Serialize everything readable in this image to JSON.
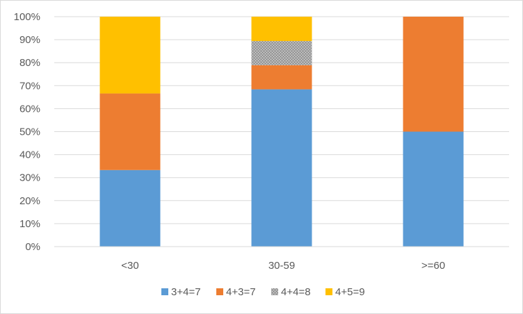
{
  "chart_data": {
    "type": "bar",
    "stacked": true,
    "percent": true,
    "categories": [
      "<30",
      "30-59",
      ">=60"
    ],
    "series": [
      {
        "name": "3+4=7",
        "color": "#5B9BD5",
        "values": [
          33.3,
          68.4,
          50.0
        ]
      },
      {
        "name": "4+3=7",
        "color": "#ED7D31",
        "values": [
          33.3,
          10.5,
          50.0
        ]
      },
      {
        "name": "4+4=8",
        "color": "#A5A5A5",
        "values": [
          0,
          10.5,
          0
        ],
        "pattern": "dotted"
      },
      {
        "name": "4+5=9",
        "color": "#FFC000",
        "values": [
          33.4,
          10.6,
          0
        ]
      }
    ],
    "ylim": [
      0,
      100
    ],
    "yticks": [
      "0%",
      "10%",
      "20%",
      "30%",
      "40%",
      "50%",
      "60%",
      "70%",
      "80%",
      "90%",
      "100%"
    ],
    "grid": true,
    "legend_position": "bottom",
    "title": "",
    "xlabel": "",
    "ylabel": ""
  }
}
